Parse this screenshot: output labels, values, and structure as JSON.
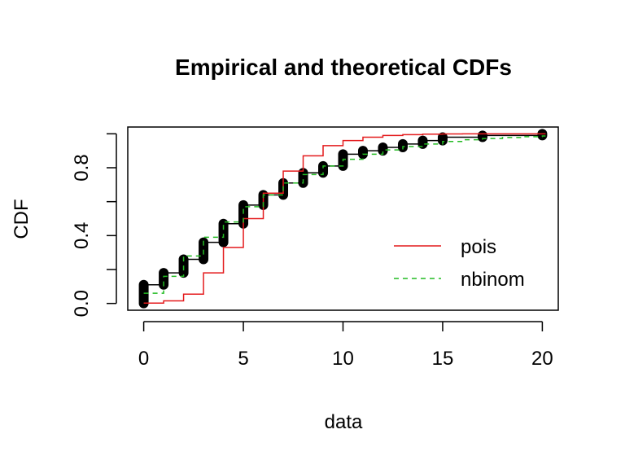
{
  "chart_data": {
    "type": "line",
    "title": "Empirical and theoretical CDFs",
    "xlabel": "data",
    "ylabel": "CDF",
    "xlim": [
      -0.8,
      20.8
    ],
    "ylim": [
      -0.04,
      1.04
    ],
    "x_ticks": [
      0,
      5,
      10,
      15,
      20
    ],
    "y_ticks": [
      0.0,
      0.4,
      0.8
    ],
    "y_tick_labels": [
      "0.0",
      "0.4",
      "0.8"
    ],
    "y_minor_ticks": [
      0.2,
      0.6,
      1.0
    ],
    "legend_position": "bottom-right",
    "empirical": {
      "color": "#000000",
      "steps": [
        {
          "x": 0,
          "y_from": 0.0,
          "y_to": 0.11
        },
        {
          "x": 1,
          "y_from": 0.11,
          "y_to": 0.18
        },
        {
          "x": 2,
          "y_from": 0.18,
          "y_to": 0.26
        },
        {
          "x": 3,
          "y_from": 0.26,
          "y_to": 0.36
        },
        {
          "x": 4,
          "y_from": 0.36,
          "y_to": 0.47
        },
        {
          "x": 5,
          "y_from": 0.47,
          "y_to": 0.58
        },
        {
          "x": 6,
          "y_from": 0.58,
          "y_to": 0.64
        },
        {
          "x": 7,
          "y_from": 0.64,
          "y_to": 0.71
        },
        {
          "x": 8,
          "y_from": 0.71,
          "y_to": 0.77
        },
        {
          "x": 9,
          "y_from": 0.77,
          "y_to": 0.81
        },
        {
          "x": 10,
          "y_from": 0.81,
          "y_to": 0.88
        },
        {
          "x": 11,
          "y_from": 0.88,
          "y_to": 0.9
        },
        {
          "x": 12,
          "y_from": 0.9,
          "y_to": 0.92
        },
        {
          "x": 13,
          "y_from": 0.92,
          "y_to": 0.94
        },
        {
          "x": 14,
          "y_from": 0.94,
          "y_to": 0.96
        },
        {
          "x": 15,
          "y_from": 0.96,
          "y_to": 0.98
        },
        {
          "x": 17,
          "y_from": 0.98,
          "y_to": 0.99
        },
        {
          "x": 20,
          "y_from": 0.99,
          "y_to": 1.0
        }
      ]
    },
    "series": [
      {
        "name": "pois",
        "color": "#e41a1c",
        "dash": "solid",
        "x": [
          0,
          1,
          2,
          3,
          4,
          5,
          6,
          7,
          8,
          9,
          10,
          11,
          12,
          13,
          14,
          15,
          16,
          17,
          18,
          19,
          20
        ],
        "y": [
          0.002,
          0.015,
          0.055,
          0.18,
          0.33,
          0.5,
          0.65,
          0.78,
          0.87,
          0.93,
          0.96,
          0.98,
          0.99,
          0.995,
          0.998,
          0.999,
          1.0,
          1.0,
          1.0,
          1.0,
          1.0
        ]
      },
      {
        "name": "nbinom",
        "color": "#22bb22",
        "dash": "dashed",
        "x": [
          0,
          1,
          2,
          3,
          4,
          5,
          6,
          7,
          8,
          9,
          10,
          11,
          12,
          13,
          14,
          15,
          16,
          17,
          18,
          19,
          20
        ],
        "y": [
          0.06,
          0.16,
          0.28,
          0.39,
          0.48,
          0.57,
          0.64,
          0.71,
          0.76,
          0.81,
          0.85,
          0.88,
          0.905,
          0.925,
          0.94,
          0.955,
          0.965,
          0.972,
          0.978,
          0.983,
          0.987
        ]
      }
    ]
  }
}
